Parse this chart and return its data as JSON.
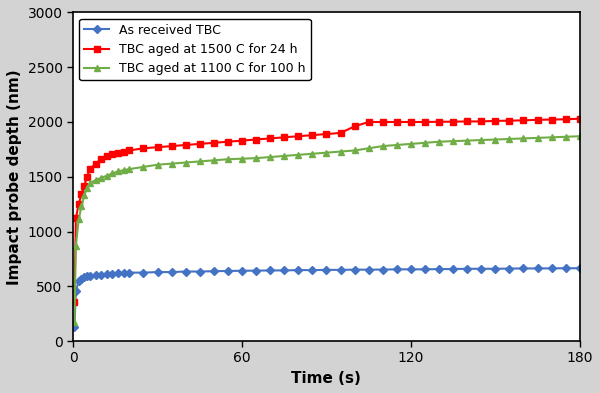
{
  "title": "",
  "xlabel": "Time (s)",
  "ylabel": "Impact probe depth (nm)",
  "xlim": [
    0,
    180
  ],
  "ylim": [
    0,
    3000
  ],
  "xticks": [
    0,
    60,
    120,
    180
  ],
  "yticks": [
    0,
    500,
    1000,
    1500,
    2000,
    2500,
    3000
  ],
  "series": [
    {
      "label": "As received TBC",
      "color": "#4472C4",
      "marker": "D",
      "markersize": 4,
      "linewidth": 1.5,
      "x": [
        0.5,
        1,
        2,
        3,
        4,
        5,
        6,
        8,
        10,
        12,
        14,
        16,
        18,
        20,
        25,
        30,
        35,
        40,
        45,
        50,
        55,
        60,
        65,
        70,
        75,
        80,
        85,
        90,
        95,
        100,
        105,
        110,
        115,
        120,
        125,
        130,
        135,
        140,
        145,
        150,
        155,
        160,
        165,
        170,
        175,
        180
      ],
      "y": [
        130,
        460,
        545,
        570,
        585,
        590,
        595,
        600,
        605,
        610,
        615,
        620,
        620,
        625,
        625,
        630,
        630,
        635,
        635,
        638,
        640,
        642,
        643,
        645,
        645,
        648,
        648,
        650,
        650,
        652,
        652,
        653,
        655,
        655,
        655,
        657,
        658,
        660,
        660,
        660,
        662,
        663,
        663,
        664,
        665,
        665
      ]
    },
    {
      "label": "TBC aged at 1500 C for 24 h",
      "color": "#FF0000",
      "marker": "s",
      "markersize": 5,
      "linewidth": 1.5,
      "x": [
        0.5,
        1,
        2,
        3,
        4,
        5,
        6,
        8,
        10,
        12,
        14,
        16,
        18,
        20,
        25,
        30,
        35,
        40,
        45,
        50,
        55,
        60,
        65,
        70,
        75,
        80,
        85,
        90,
        95,
        100,
        105,
        110,
        115,
        120,
        125,
        130,
        135,
        140,
        145,
        150,
        155,
        160,
        165,
        170,
        175,
        180
      ],
      "y": [
        360,
        1120,
        1250,
        1340,
        1420,
        1500,
        1570,
        1620,
        1660,
        1690,
        1710,
        1720,
        1730,
        1740,
        1760,
        1770,
        1780,
        1790,
        1800,
        1810,
        1820,
        1830,
        1840,
        1850,
        1860,
        1870,
        1880,
        1890,
        1900,
        1960,
        2000,
        2000,
        2000,
        2000,
        2000,
        2002,
        2003,
        2005,
        2005,
        2010,
        2012,
        2015,
        2020,
        2022,
        2025,
        2030
      ]
    },
    {
      "label": "TBC aged at 1100 C for 100 h",
      "color": "#70AD47",
      "marker": "^",
      "markersize": 5,
      "linewidth": 1.5,
      "x": [
        0.5,
        1,
        2,
        3,
        4,
        5,
        6,
        8,
        10,
        12,
        14,
        16,
        18,
        20,
        25,
        30,
        35,
        40,
        45,
        50,
        55,
        60,
        65,
        70,
        75,
        80,
        85,
        90,
        95,
        100,
        105,
        110,
        115,
        120,
        125,
        130,
        135,
        140,
        145,
        150,
        155,
        160,
        165,
        170,
        175,
        180
      ],
      "y": [
        170,
        870,
        1110,
        1230,
        1330,
        1400,
        1440,
        1470,
        1490,
        1510,
        1530,
        1550,
        1560,
        1570,
        1590,
        1610,
        1620,
        1630,
        1640,
        1650,
        1660,
        1665,
        1670,
        1680,
        1690,
        1700,
        1710,
        1720,
        1730,
        1740,
        1760,
        1780,
        1790,
        1800,
        1810,
        1820,
        1825,
        1830,
        1835,
        1840,
        1845,
        1850,
        1855,
        1860,
        1865,
        1870
      ]
    }
  ],
  "legend_loc": "upper left",
  "legend_fontsize": 9,
  "axis_fontsize": 11,
  "tick_fontsize": 10,
  "background_color": "#FFFFFF",
  "outer_background": "#D3D3D3"
}
